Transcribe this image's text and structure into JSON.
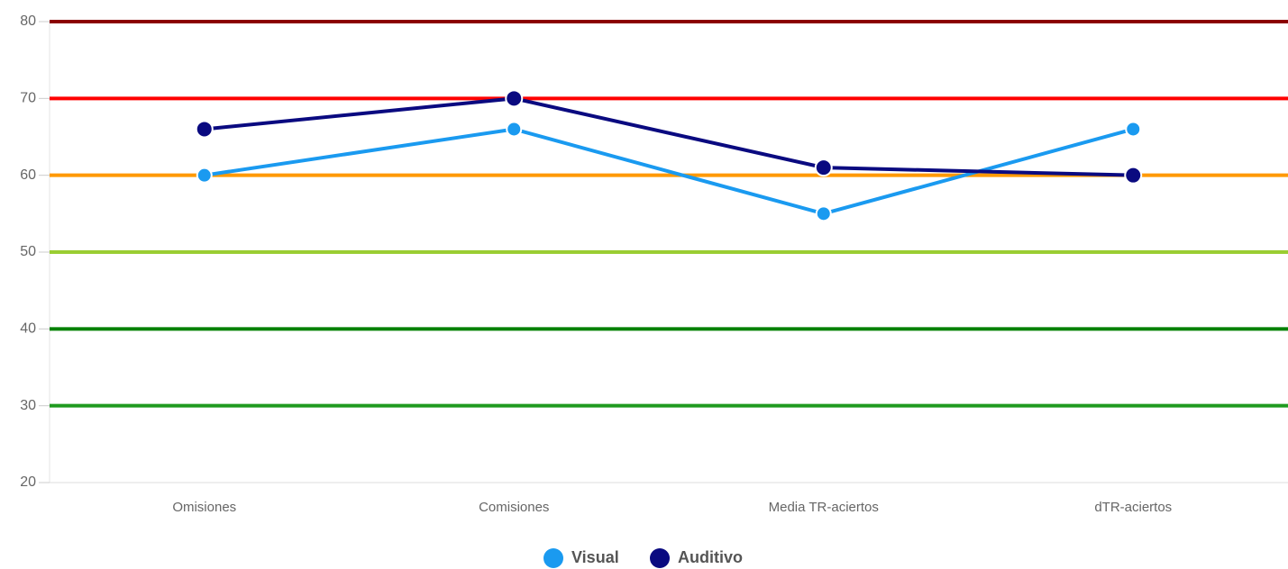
{
  "chart_data": {
    "type": "line",
    "categories": [
      "Omisiones",
      "Comisiones",
      "Media TR-aciertos",
      "dTR-aciertos"
    ],
    "series": [
      {
        "name": "Visual",
        "color": "#1a9af0",
        "values": [
          60,
          66,
          55,
          66
        ]
      },
      {
        "name": "Auditivo",
        "color": "#0a0a80",
        "values": [
          66,
          70,
          61,
          60
        ]
      }
    ],
    "ylim": [
      20,
      80
    ],
    "yticks": [
      20,
      30,
      40,
      50,
      60,
      70,
      80
    ],
    "grid": true,
    "grid_colors": [
      "#dddddd",
      "#1f9a1f",
      "#008000",
      "#9acd32",
      "#ff9900",
      "#ff0000",
      "#8b0000"
    ],
    "legend": "bottom"
  }
}
